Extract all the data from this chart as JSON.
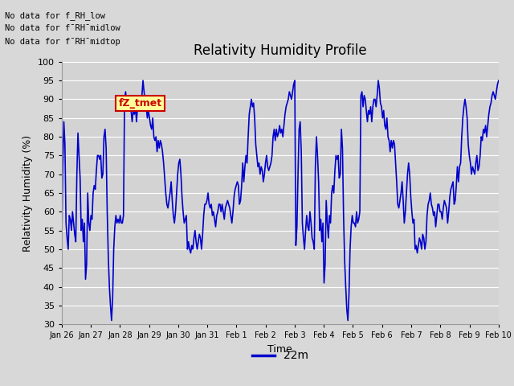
{
  "title": "Relativity Humidity Profile",
  "ylabel": "Relativity Humidity (%)",
  "xlabel": "Time",
  "legend_label": "22m",
  "line_color": "#0000cc",
  "fig_bg_color": "#d8d8d8",
  "plot_bg_color": "#d3d3d3",
  "ylim": [
    30,
    100
  ],
  "yticks": [
    30,
    35,
    40,
    45,
    50,
    55,
    60,
    65,
    70,
    75,
    80,
    85,
    90,
    95,
    100
  ],
  "xtick_labels": [
    "Jan 26",
    "Jan 27",
    "Jan 28",
    "Jan 29",
    "Jan 30",
    "Jan 31",
    "Feb 1",
    "Feb 2",
    "Feb 3",
    "Feb 4",
    "Feb 5",
    "Feb 6",
    "Feb 7",
    "Feb 8",
    "Feb 9",
    "Feb 10"
  ],
  "no_data_texts": [
    "No data for f_RH_low",
    "No data for f¯RH¯midlow",
    "No data for f¯RH¯midtop"
  ],
  "annotation_text": "fZ_tmet",
  "annotation_box_color": "#ffff99",
  "annotation_text_color": "#cc0000",
  "humidity_values": [
    51,
    72,
    84,
    78,
    57,
    53,
    50,
    59,
    58,
    55,
    60,
    57,
    54,
    52,
    70,
    81,
    75,
    69,
    55,
    58,
    52,
    57,
    42,
    46,
    65,
    57,
    55,
    59,
    58,
    65,
    67,
    66,
    71,
    75,
    75,
    74,
    75,
    69,
    70,
    80,
    82,
    77,
    60,
    48,
    40,
    35,
    31,
    37,
    50,
    56,
    59,
    57,
    58,
    57,
    59,
    57,
    57,
    59,
    90,
    92,
    88,
    91,
    90,
    89,
    87,
    84,
    87,
    86,
    88,
    84,
    88,
    90,
    90,
    88,
    91,
    95,
    92,
    89,
    88,
    85,
    87,
    85,
    83,
    82,
    85,
    80,
    79,
    80,
    76,
    79,
    77,
    79,
    78,
    76,
    73,
    69,
    65,
    62,
    61,
    63,
    65,
    68,
    63,
    59,
    57,
    60,
    65,
    70,
    73,
    74,
    70,
    64,
    60,
    57,
    58,
    59,
    50,
    52,
    50,
    49,
    51,
    50,
    53,
    55,
    52,
    50,
    52,
    54,
    53,
    50,
    54,
    59,
    62,
    62,
    63,
    65,
    62,
    61,
    62,
    59,
    60,
    58,
    56,
    59,
    60,
    62,
    62,
    60,
    62,
    60,
    58,
    61,
    62,
    63,
    62,
    61,
    59,
    57,
    60,
    64,
    66,
    67,
    68,
    67,
    62,
    63,
    67,
    73,
    68,
    72,
    75,
    73,
    80,
    86,
    88,
    90,
    88,
    89,
    85,
    78,
    75,
    72,
    73,
    70,
    72,
    71,
    68,
    70,
    73,
    75,
    72,
    71,
    72,
    73,
    75,
    80,
    82,
    79,
    82,
    80,
    81,
    83,
    81,
    82,
    80,
    83,
    86,
    88,
    89,
    90,
    92,
    91,
    90,
    92,
    94,
    95,
    51,
    56,
    70,
    82,
    84,
    76,
    57,
    53,
    50,
    55,
    59,
    56,
    55,
    60,
    57,
    53,
    52,
    50,
    72,
    80,
    75,
    68,
    55,
    58,
    52,
    57,
    41,
    46,
    63,
    57,
    53,
    59,
    57,
    65,
    67,
    65,
    71,
    75,
    74,
    75,
    69,
    70,
    82,
    77,
    59,
    47,
    40,
    34,
    31,
    38,
    50,
    56,
    59,
    57,
    57,
    56,
    60,
    57,
    58,
    60,
    91,
    92,
    88,
    91,
    90,
    87,
    84,
    87,
    86,
    88,
    84,
    88,
    90,
    90,
    88,
    91,
    95,
    93,
    89,
    88,
    85,
    87,
    83,
    82,
    85,
    80,
    79,
    76,
    79,
    77,
    79,
    78,
    73,
    68,
    62,
    61,
    63,
    65,
    68,
    63,
    57,
    60,
    65,
    70,
    73,
    70,
    64,
    60,
    57,
    58,
    50,
    51,
    49,
    51,
    53,
    52,
    50,
    54,
    53,
    50,
    52,
    59,
    62,
    63,
    65,
    62,
    61,
    59,
    60,
    56,
    59,
    62,
    62,
    60,
    60,
    58,
    61,
    63,
    62,
    61,
    57,
    60,
    64,
    66,
    67,
    68,
    62,
    63,
    67,
    72,
    68,
    72,
    73,
    80,
    85,
    88,
    90,
    88,
    85,
    78,
    75,
    73,
    70,
    72,
    71,
    70,
    73,
    75,
    71,
    72,
    75,
    80,
    79,
    82,
    81,
    83,
    80,
    83,
    86,
    88,
    89,
    91,
    92,
    91,
    90,
    92,
    94,
    95
  ]
}
